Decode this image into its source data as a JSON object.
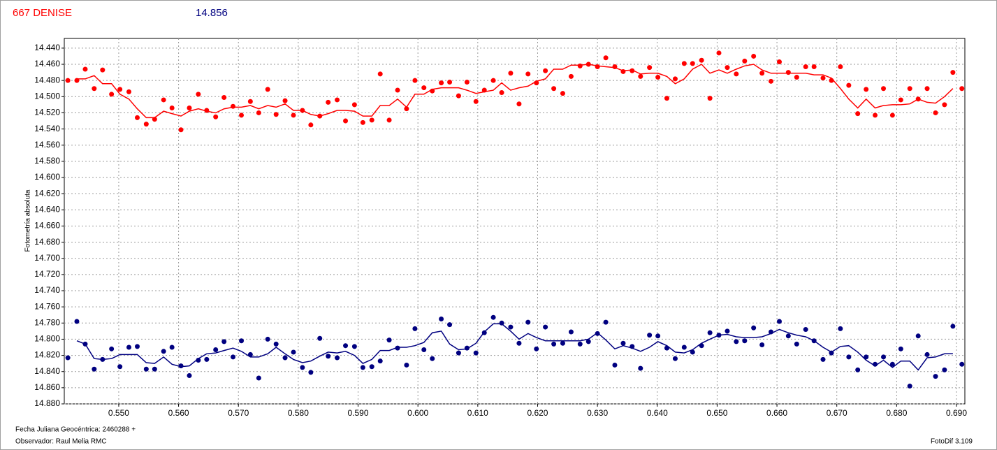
{
  "chart_data": {
    "type": "scatter",
    "title": "667 DENISE",
    "subtitle": "14.856",
    "ylabel": "Fotometría absoluta",
    "xlabel": "Fecha Juliana Geocéntrica: 2460288 +",
    "observer": "Observador: Raul Melia RMC",
    "software": "FotoDif 3.109",
    "y_inverted": true,
    "grid": true,
    "xlim": [
      0.5409,
      0.6914
    ],
    "ylim": [
      14.428,
      14.88
    ],
    "xticks": [
      {
        "value": 0.55,
        "label": "0.550"
      },
      {
        "value": 0.56,
        "label": "0.560"
      },
      {
        "value": 0.57,
        "label": "0.570"
      },
      {
        "value": 0.58,
        "label": "0.580"
      },
      {
        "value": 0.59,
        "label": "0.590"
      },
      {
        "value": 0.6,
        "label": "0.600"
      },
      {
        "value": 0.61,
        "label": "0.610"
      },
      {
        "value": 0.62,
        "label": "0.620"
      },
      {
        "value": 0.63,
        "label": "0.630"
      },
      {
        "value": 0.64,
        "label": "0.640"
      },
      {
        "value": 0.65,
        "label": "0.650"
      },
      {
        "value": 0.66,
        "label": "0.660"
      },
      {
        "value": 0.67,
        "label": "0.670"
      },
      {
        "value": 0.68,
        "label": "0.680"
      },
      {
        "value": 0.69,
        "label": "0.690"
      }
    ],
    "yticks": [
      {
        "value": 14.44,
        "label": "14.440"
      },
      {
        "value": 14.46,
        "label": "14.460"
      },
      {
        "value": 14.48,
        "label": "14.480"
      },
      {
        "value": 14.5,
        "label": "14.500"
      },
      {
        "value": 14.52,
        "label": "14.520"
      },
      {
        "value": 14.54,
        "label": "14.540"
      },
      {
        "value": 14.56,
        "label": "14.560"
      },
      {
        "value": 14.58,
        "label": "14.580"
      },
      {
        "value": 14.6,
        "label": "14.600"
      },
      {
        "value": 14.62,
        "label": "14.620"
      },
      {
        "value": 14.64,
        "label": "14.640"
      },
      {
        "value": 14.66,
        "label": "14.660"
      },
      {
        "value": 14.68,
        "label": "14.680"
      },
      {
        "value": 14.7,
        "label": "14.700"
      },
      {
        "value": 14.72,
        "label": "14.720"
      },
      {
        "value": 14.74,
        "label": "14.740"
      },
      {
        "value": 14.76,
        "label": "14.760"
      },
      {
        "value": 14.78,
        "label": "14.780"
      },
      {
        "value": 14.8,
        "label": "14.800"
      },
      {
        "value": 14.82,
        "label": "14.820"
      },
      {
        "value": 14.84,
        "label": "14.840"
      },
      {
        "value": 14.86,
        "label": "14.860"
      },
      {
        "value": 14.88,
        "label": "14.880"
      }
    ],
    "x": [
      0.5415,
      0.543,
      0.5444,
      0.5459,
      0.5473,
      0.5488,
      0.5502,
      0.5517,
      0.5531,
      0.5546,
      0.556,
      0.5575,
      0.5589,
      0.5604,
      0.5618,
      0.5633,
      0.5647,
      0.5662,
      0.5676,
      0.5691,
      0.5705,
      0.572,
      0.5734,
      0.5749,
      0.5763,
      0.5778,
      0.5792,
      0.5807,
      0.5821,
      0.5836,
      0.585,
      0.5865,
      0.5879,
      0.5894,
      0.5908,
      0.5923,
      0.5937,
      0.5952,
      0.5966,
      0.5981,
      0.5995,
      0.601,
      0.6024,
      0.6039,
      0.6053,
      0.6068,
      0.6082,
      0.6097,
      0.6111,
      0.6126,
      0.614,
      0.6155,
      0.6169,
      0.6184,
      0.6198,
      0.6213,
      0.6227,
      0.6242,
      0.6256,
      0.6271,
      0.6285,
      0.63,
      0.6314,
      0.6329,
      0.6343,
      0.6358,
      0.6372,
      0.6387,
      0.6401,
      0.6416,
      0.643,
      0.6445,
      0.6459,
      0.6474,
      0.6488,
      0.6503,
      0.6517,
      0.6532,
      0.6546,
      0.6561,
      0.6575,
      0.659,
      0.6604,
      0.6619,
      0.6633,
      0.6648,
      0.6662,
      0.6677,
      0.6691,
      0.6706,
      0.672,
      0.6735,
      0.6749,
      0.6764,
      0.6778,
      0.6793,
      0.6807,
      0.6822,
      0.6836,
      0.6851,
      0.6865,
      0.688,
      0.6894,
      0.6909
    ],
    "series": [
      {
        "color": "#ff0000",
        "values": [
          14.48,
          14.48,
          14.466,
          14.49,
          14.467,
          14.497,
          14.491,
          14.494,
          14.526,
          14.534,
          14.528,
          14.504,
          14.514,
          14.541,
          14.514,
          14.497,
          14.517,
          14.525,
          14.501,
          14.512,
          14.523,
          14.506,
          14.52,
          14.491,
          14.522,
          14.505,
          14.523,
          14.517,
          14.535,
          14.524,
          14.507,
          14.504,
          14.53,
          14.51,
          14.532,
          14.529,
          14.472,
          14.529,
          14.492,
          14.515,
          14.48,
          14.489,
          14.493,
          14.483,
          14.482,
          14.499,
          14.482,
          14.506,
          14.492,
          14.48,
          14.495,
          14.471,
          14.509,
          14.472,
          14.483,
          14.468,
          14.49,
          14.496,
          14.475,
          14.462,
          14.46,
          14.463,
          14.452,
          14.463,
          14.469,
          14.468,
          14.475,
          14.464,
          14.476,
          14.502,
          14.478,
          14.459,
          14.459,
          14.455,
          14.502,
          14.446,
          14.464,
          14.472,
          14.456,
          14.45,
          14.471,
          14.481,
          14.457,
          14.47,
          14.476,
          14.463,
          14.463,
          14.477,
          14.48,
          14.463,
          14.486,
          14.521,
          14.491,
          14.523,
          14.49,
          14.523,
          14.504,
          14.49,
          14.503,
          14.49,
          14.52,
          14.51,
          14.47,
          14.49
        ],
        "line": [
          null,
          14.478,
          14.478,
          14.474,
          14.484,
          14.484,
          14.497,
          14.503,
          14.515,
          14.526,
          14.526,
          14.518,
          14.521,
          14.524,
          14.518,
          14.515,
          14.518,
          14.52,
          14.515,
          14.513,
          14.513,
          14.511,
          14.515,
          14.511,
          14.513,
          14.509,
          14.517,
          14.517,
          14.522,
          14.524,
          14.521,
          14.517,
          14.517,
          14.518,
          14.524,
          14.524,
          14.511,
          14.511,
          14.503,
          14.513,
          14.497,
          14.497,
          14.491,
          14.489,
          14.489,
          14.489,
          14.492,
          14.496,
          14.494,
          14.492,
          14.483,
          14.492,
          14.489,
          14.487,
          14.481,
          14.478,
          14.466,
          14.466,
          14.461,
          14.461,
          14.46,
          14.462,
          14.463,
          14.464,
          14.468,
          14.467,
          14.472,
          14.471,
          14.471,
          14.475,
          14.484,
          14.478,
          14.466,
          14.46,
          14.471,
          14.467,
          14.471,
          14.466,
          14.462,
          14.46,
          14.467,
          14.471,
          14.471,
          14.471,
          14.471,
          14.471,
          14.473,
          14.473,
          14.477,
          14.49,
          14.503,
          14.514,
          14.503,
          14.514,
          14.511,
          14.51,
          14.51,
          14.509,
          14.503,
          14.507,
          14.508,
          14.5,
          14.49,
          null
        ]
      },
      {
        "color": "#000080",
        "values": [
          14.823,
          14.778,
          14.806,
          14.837,
          14.825,
          14.812,
          14.834,
          14.81,
          14.809,
          14.837,
          14.837,
          14.815,
          14.81,
          14.833,
          14.845,
          14.826,
          14.825,
          14.813,
          14.803,
          14.822,
          14.802,
          14.819,
          14.848,
          14.8,
          14.806,
          14.823,
          14.816,
          14.835,
          14.841,
          14.799,
          14.821,
          14.823,
          14.808,
          14.809,
          14.835,
          14.834,
          14.827,
          14.801,
          14.811,
          14.832,
          14.787,
          14.813,
          14.824,
          14.775,
          14.782,
          14.817,
          14.811,
          14.817,
          14.792,
          14.773,
          14.78,
          14.785,
          14.805,
          14.779,
          14.812,
          14.785,
          14.806,
          14.805,
          14.791,
          14.806,
          14.803,
          14.793,
          14.779,
          14.832,
          14.805,
          14.809,
          14.836,
          14.795,
          14.796,
          14.811,
          14.824,
          14.81,
          14.816,
          14.808,
          14.792,
          14.795,
          14.79,
          14.803,
          14.802,
          14.786,
          14.807,
          14.791,
          14.778,
          14.796,
          14.806,
          14.788,
          14.802,
          14.825,
          14.817,
          14.787,
          14.822,
          14.838,
          14.822,
          14.831,
          14.822,
          14.831,
          14.812,
          14.858,
          14.796,
          14.819,
          14.846,
          14.838,
          14.784,
          14.831
        ],
        "line": [
          null,
          14.802,
          14.806,
          14.824,
          14.825,
          14.824,
          14.819,
          14.819,
          14.819,
          14.829,
          14.83,
          14.822,
          14.831,
          14.834,
          14.833,
          14.824,
          14.818,
          14.817,
          14.814,
          14.811,
          14.815,
          14.822,
          14.822,
          14.818,
          14.81,
          14.818,
          14.825,
          14.829,
          14.827,
          14.821,
          14.816,
          14.817,
          14.815,
          14.82,
          14.83,
          14.825,
          14.814,
          14.814,
          14.81,
          14.81,
          14.808,
          14.804,
          14.792,
          14.79,
          14.806,
          14.813,
          14.812,
          14.805,
          14.791,
          14.781,
          14.781,
          14.79,
          14.8,
          14.793,
          14.798,
          14.802,
          14.802,
          14.802,
          14.802,
          14.802,
          14.8,
          14.792,
          14.801,
          14.812,
          14.808,
          14.811,
          14.815,
          14.81,
          14.803,
          14.808,
          14.816,
          14.817,
          14.813,
          14.805,
          14.8,
          14.795,
          14.794,
          14.797,
          14.798,
          14.798,
          14.797,
          14.793,
          14.788,
          14.792,
          14.795,
          14.797,
          14.802,
          14.81,
          14.816,
          14.809,
          14.808,
          14.816,
          14.826,
          14.833,
          14.826,
          14.835,
          14.827,
          14.827,
          14.838,
          14.823,
          14.822,
          14.818,
          14.818,
          null
        ]
      }
    ]
  }
}
